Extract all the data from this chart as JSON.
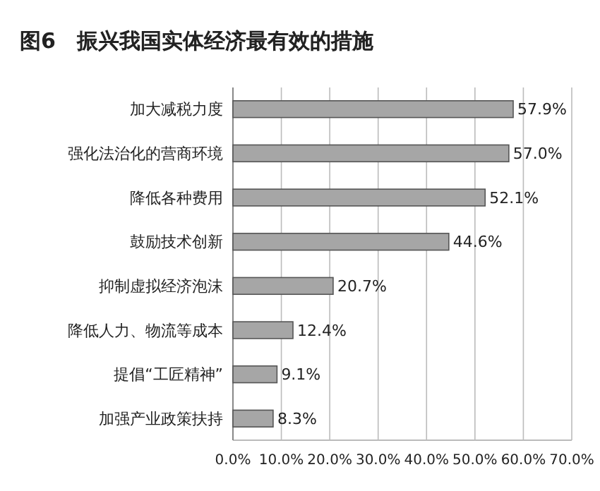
{
  "chart_data": {
    "type": "bar",
    "orientation": "horizontal",
    "title": "图6　振兴我国实体经济最有效的措施",
    "categories": [
      "加大减税力度",
      "强化法治化的营商环境",
      "降低各种费用",
      "鼓励技术创新",
      "抑制虚拟经济泡沫",
      "降低人力、物流等成本",
      "提倡“工匠精神”",
      "加强产业政策扶持"
    ],
    "values": [
      57.9,
      57.0,
      52.1,
      44.6,
      20.7,
      12.4,
      9.1,
      8.3
    ],
    "value_labels": [
      "57.9%",
      "57.0%",
      "52.1%",
      "44.6%",
      "20.7%",
      "12.4%",
      "9.1%",
      "8.3%"
    ],
    "color": "#a6a6a6",
    "xlim": [
      0,
      70
    ],
    "xticks": [
      {
        "value": 0,
        "label": "0.0%"
      },
      {
        "value": 10,
        "label": "10.0%"
      },
      {
        "value": 20,
        "label": "20.0%"
      },
      {
        "value": 30,
        "label": "30.0%"
      },
      {
        "value": 40,
        "label": "40.0%"
      },
      {
        "value": 50,
        "label": "50.0%"
      },
      {
        "value": 60,
        "label": "60.0%"
      },
      {
        "value": 70,
        "label": "70.0%"
      }
    ],
    "grid": "x"
  }
}
